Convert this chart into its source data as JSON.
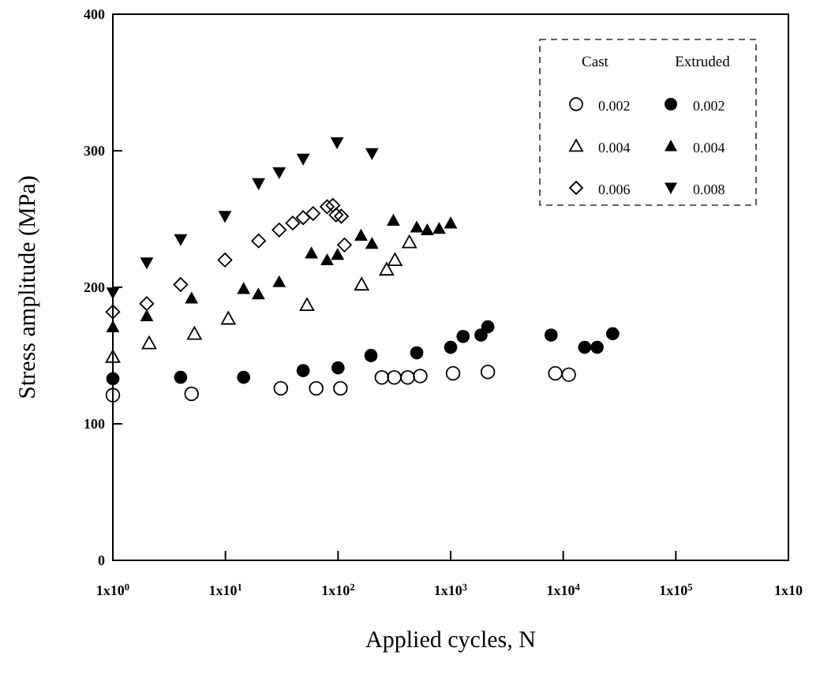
{
  "chart_data": {
    "type": "scatter",
    "xlabel": "Applied cycles, N",
    "ylabel": "Stress amplitude (MPa)",
    "log": "x",
    "xlim": [
      1,
      1000000
    ],
    "xticks": [
      {
        "value": 1,
        "label": "1x10$^{0}$"
      },
      {
        "value": 10,
        "label": "1x10$^{1}$"
      },
      {
        "value": 100,
        "label": "1x10$^{2}$"
      },
      {
        "value": 1000,
        "label": "1x10$^{3}$"
      },
      {
        "value": 10000,
        "label": "1x10$^{4}$"
      },
      {
        "value": 100000,
        "label": "1x10$^{5}$"
      },
      {
        "value": 1000000,
        "label": "1x10"
      }
    ],
    "ylim": [
      0,
      400
    ],
    "yticks": [
      0,
      100,
      200,
      300,
      400
    ],
    "grid": false,
    "legend": "top right",
    "annotations": [
      "Cast",
      "Extruded"
    ],
    "series": [
      {
        "name": "0.002",
        "color": "#000000",
        "marker": "circle-open",
        "x": [
          1,
          5,
          31,
          64,
          105,
          245,
          316,
          415,
          537,
          1050,
          2140,
          8500,
          11200
        ],
        "values": [
          121,
          122,
          126,
          126,
          126,
          134,
          134,
          134,
          135,
          137,
          138,
          137,
          136
        ]
      },
      {
        "name": "0.004",
        "color": "#000000",
        "marker": "triangle-open",
        "x": [
          1,
          2.1,
          5.3,
          10.6,
          53,
          162,
          270,
          320,
          430
        ],
        "values": [
          149,
          159,
          166,
          177,
          187,
          202,
          213,
          220,
          233
        ]
      },
      {
        "name": "0.006",
        "color": "#000000",
        "marker": "diamond-open",
        "x": [
          1,
          2,
          4,
          9.9,
          19.7,
          30,
          39.6,
          49,
          60,
          80,
          90,
          96,
          107,
          114
        ],
        "values": [
          182,
          188,
          202,
          220,
          234,
          242,
          247,
          251,
          254,
          259,
          260,
          253,
          252,
          231
        ]
      },
      {
        "name": "0.002",
        "color": "#000000",
        "marker": "circle",
        "x": [
          1,
          4,
          14.5,
          49,
          100,
          196,
          500,
          1000,
          1290,
          1860,
          2140,
          7800,
          15500,
          20000,
          27500
        ],
        "values": [
          133,
          134,
          134,
          139,
          141,
          150,
          152,
          156,
          164,
          165,
          171,
          165,
          156,
          156,
          166
        ]
      },
      {
        "name": "0.004",
        "color": "#000000",
        "marker": "triangle",
        "x": [
          1,
          2,
          5,
          14.5,
          19.6,
          30,
          58,
          80,
          99,
          160,
          200,
          310,
          500,
          620,
          790,
          1000
        ],
        "values": [
          171,
          179,
          192,
          199,
          195,
          204,
          225,
          220,
          224,
          238,
          232,
          249,
          244,
          242,
          243,
          247
        ]
      },
      {
        "name": "0.008",
        "color": "#000000",
        "marker": "triangle-down",
        "x": [
          1,
          2,
          4,
          9.9,
          19.7,
          30,
          49,
          98,
          200
        ],
        "values": [
          196,
          218,
          235,
          252,
          276,
          284,
          294,
          306,
          298
        ]
      }
    ]
  }
}
